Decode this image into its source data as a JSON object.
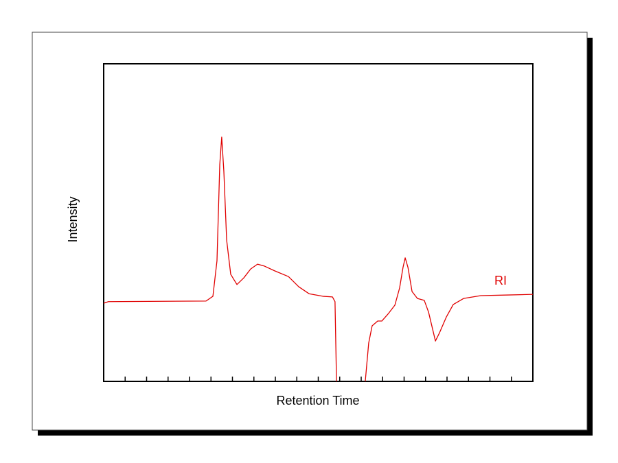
{
  "chart_data": {
    "type": "line",
    "xlabel": "Retention Time",
    "ylabel": "Intensity",
    "annotation": "RI",
    "x": [
      0,
      0.22,
      4.77,
      5.09,
      5.28,
      5.41,
      5.5,
      5.6,
      5.73,
      5.92,
      6.21,
      6.53,
      6.85,
      7.17,
      7.49,
      7.97,
      8.61,
      9.09,
      9.57,
      10.21,
      10.66,
      10.78,
      10.85,
      11.5,
      12.19,
      12.35,
      12.51,
      12.77,
      12.96,
      13.25,
      13.57,
      13.79,
      13.95,
      14.05,
      14.18,
      14.37,
      14.62,
      14.94,
      15.14,
      15.33,
      15.46,
      15.65,
      15.97,
      16.29,
      16.77,
      17.57,
      18.85,
      20
    ],
    "series": [
      {
        "name": "RI",
        "color": "#e00000",
        "values": [
          24.6,
          25.1,
          25.3,
          26.8,
          38,
          68.3,
          76.9,
          66.1,
          44.5,
          33.7,
          30.5,
          32.6,
          35.4,
          36.9,
          36.3,
          34.8,
          33,
          29.8,
          27.6,
          26.8,
          26.6,
          25.1,
          0,
          null,
          0,
          12.1,
          17.5,
          19,
          19,
          21.2,
          24,
          29.4,
          35.9,
          38.9,
          35.9,
          28.3,
          26.1,
          25.5,
          21.8,
          16.4,
          12.7,
          15.3,
          20.3,
          24.2,
          26.1,
          27,
          27.2,
          27.4
        ]
      }
    ],
    "xlim": [
      0,
      20
    ],
    "ylim": [
      0,
      100
    ],
    "xticks": [
      1,
      2,
      3,
      4,
      5,
      6,
      7,
      8,
      9,
      10,
      11,
      12,
      13,
      14,
      15,
      16,
      17,
      18,
      19
    ]
  }
}
